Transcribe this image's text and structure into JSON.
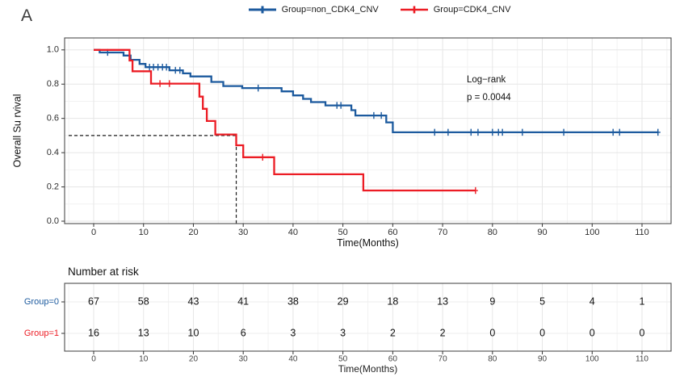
{
  "panel_label": "A",
  "legend": {
    "items": [
      {
        "label": "Group=non_CDK4_CNV",
        "color": "#1c5a9e"
      },
      {
        "label": "Group=CDK4_CNV",
        "color": "#ec1c24"
      }
    ]
  },
  "annotation": {
    "line1": "Log−rank",
    "line2": "p = 0.0044"
  },
  "chart_data": {
    "type": "line",
    "subtype": "kaplan-meier-step",
    "title": "",
    "xlabel": "Time(Months)",
    "ylabel": "Overall Su rvival",
    "xlim": [
      -6,
      116
    ],
    "ylim": [
      -0.02,
      1.07
    ],
    "xticks": [
      0,
      10,
      20,
      30,
      40,
      50,
      60,
      70,
      80,
      90,
      100,
      110
    ],
    "yticks": [
      0.0,
      0.2,
      0.4,
      0.6,
      0.8,
      1.0
    ],
    "grid": true,
    "legend_position": "top",
    "median_line": {
      "survival": 0.5,
      "time": 28.6
    },
    "series": [
      {
        "name": "Group=non_CDK4_CNV",
        "color": "#1c5a9e",
        "steps": [
          [
            0,
            1.0
          ],
          [
            1.2,
            0.985
          ],
          [
            6.0,
            0.967
          ],
          [
            7.4,
            0.942
          ],
          [
            9.2,
            0.918
          ],
          [
            10.4,
            0.899
          ],
          [
            15.2,
            0.881
          ],
          [
            17.9,
            0.863
          ],
          [
            19.4,
            0.845
          ],
          [
            23.6,
            0.813
          ],
          [
            26.0,
            0.789
          ],
          [
            29.8,
            0.777
          ],
          [
            37.7,
            0.758
          ],
          [
            40.0,
            0.734
          ],
          [
            42.0,
            0.714
          ],
          [
            43.6,
            0.695
          ],
          [
            46.5,
            0.676
          ],
          [
            51.7,
            0.648
          ],
          [
            52.5,
            0.617
          ],
          [
            58.7,
            0.577
          ],
          [
            60.0,
            0.519
          ],
          [
            113.3,
            0.519
          ]
        ],
        "censors": [
          [
            2.8,
            0.985
          ],
          [
            11.2,
            0.899
          ],
          [
            12.0,
            0.899
          ],
          [
            12.9,
            0.899
          ],
          [
            13.8,
            0.899
          ],
          [
            14.6,
            0.899
          ],
          [
            16.4,
            0.881
          ],
          [
            17.3,
            0.881
          ],
          [
            33.0,
            0.777
          ],
          [
            48.8,
            0.676
          ],
          [
            49.6,
            0.676
          ],
          [
            56.2,
            0.617
          ],
          [
            57.7,
            0.617
          ],
          [
            68.4,
            0.519
          ],
          [
            71.1,
            0.519
          ],
          [
            75.7,
            0.519
          ],
          [
            77.1,
            0.519
          ],
          [
            80.0,
            0.519
          ],
          [
            81.2,
            0.519
          ],
          [
            82.0,
            0.519
          ],
          [
            86.0,
            0.519
          ],
          [
            94.3,
            0.519
          ],
          [
            104.2,
            0.519
          ],
          [
            105.5,
            0.519
          ],
          [
            113.2,
            0.519
          ]
        ]
      },
      {
        "name": "Group=CDK4_CNV",
        "color": "#ec1c24",
        "steps": [
          [
            0,
            1.0
          ],
          [
            7.2,
            0.938
          ],
          [
            7.8,
            0.875
          ],
          [
            11.5,
            0.803
          ],
          [
            21.2,
            0.727
          ],
          [
            21.9,
            0.656
          ],
          [
            22.7,
            0.585
          ],
          [
            24.4,
            0.506
          ],
          [
            28.6,
            0.443
          ],
          [
            30.0,
            0.373
          ],
          [
            36.2,
            0.274
          ],
          [
            54.1,
            0.179
          ],
          [
            76.6,
            0.179
          ]
        ],
        "censors": [
          [
            13.3,
            0.803
          ],
          [
            15.2,
            0.803
          ],
          [
            33.9,
            0.373
          ],
          [
            76.6,
            0.179
          ]
        ]
      }
    ]
  },
  "risk_table": {
    "title": "Number at risk",
    "xlabel": "Time(Months)",
    "times": [
      0,
      10,
      20,
      30,
      40,
      50,
      60,
      70,
      80,
      90,
      100,
      110
    ],
    "rows": [
      {
        "label": "Group=0",
        "color": "#1c5a9e",
        "values": [
          67,
          58,
          43,
          41,
          38,
          29,
          18,
          13,
          9,
          5,
          4,
          1
        ]
      },
      {
        "label": "Group=1",
        "color": "#ec1c24",
        "values": [
          16,
          13,
          10,
          6,
          3,
          3,
          2,
          2,
          0,
          0,
          0,
          0
        ]
      }
    ]
  }
}
